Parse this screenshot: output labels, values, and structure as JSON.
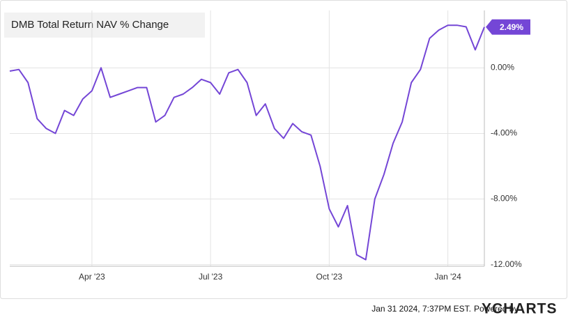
{
  "chart_data": {
    "type": "line",
    "title": "DMB Total Return NAV % Change",
    "categories": [
      null,
      null,
      null,
      null,
      null,
      null,
      null,
      null,
      null,
      "Apr '23",
      null,
      null,
      null,
      null,
      null,
      null,
      null,
      null,
      null,
      null,
      null,
      null,
      "Jul '23",
      null,
      null,
      null,
      null,
      null,
      null,
      null,
      null,
      null,
      null,
      null,
      null,
      "Oct '23",
      null,
      null,
      null,
      null,
      null,
      null,
      null,
      null,
      null,
      null,
      null,
      null,
      "Jan '24",
      null,
      null,
      null,
      null
    ],
    "values": [
      -0.2,
      -0.1,
      -0.9,
      -3.1,
      -3.7,
      -4.0,
      -2.6,
      -2.9,
      -1.9,
      -1.4,
      0.0,
      -1.8,
      -1.6,
      -1.4,
      -1.2,
      -1.2,
      -3.3,
      -2.9,
      -1.8,
      -1.6,
      -1.2,
      -0.7,
      -0.9,
      -1.6,
      -0.3,
      -0.1,
      -0.9,
      -2.9,
      -2.2,
      -3.7,
      -4.3,
      -3.4,
      -3.9,
      -4.1,
      -6.0,
      -8.6,
      -9.7,
      -8.4,
      -11.4,
      -11.7,
      -8.0,
      -6.5,
      -4.6,
      -3.3,
      -0.9,
      -0.1,
      1.8,
      2.3,
      2.6,
      2.6,
      2.5,
      1.1,
      2.49
    ],
    "value_labels": [
      null,
      null,
      null,
      null,
      null,
      null,
      null,
      null,
      null,
      null,
      null,
      null,
      null,
      null,
      null,
      null,
      null,
      null,
      null,
      null,
      null,
      null,
      null,
      null,
      null,
      null,
      null,
      null,
      null,
      null,
      null,
      null,
      null,
      null,
      null,
      null,
      null,
      null,
      null,
      null,
      null,
      null,
      null,
      null,
      null,
      null,
      null,
      null,
      null,
      null,
      null,
      null,
      "2.49%"
    ],
    "color": "#7446d6",
    "ylim": [
      -12.1,
      3.5
    ],
    "yticks": [
      {
        "value": 0,
        "label": "0.00%"
      },
      {
        "value": -4,
        "label": "-4.00%"
      },
      {
        "value": -8,
        "label": "-8.00%"
      },
      {
        "value": -12,
        "label": "-12.00%"
      }
    ],
    "grid": true
  },
  "footer": {
    "timestamp": "Jan 31 2024, 7:37PM EST.",
    "powered_by": "Powered by",
    "brand": "YCHARTS"
  }
}
